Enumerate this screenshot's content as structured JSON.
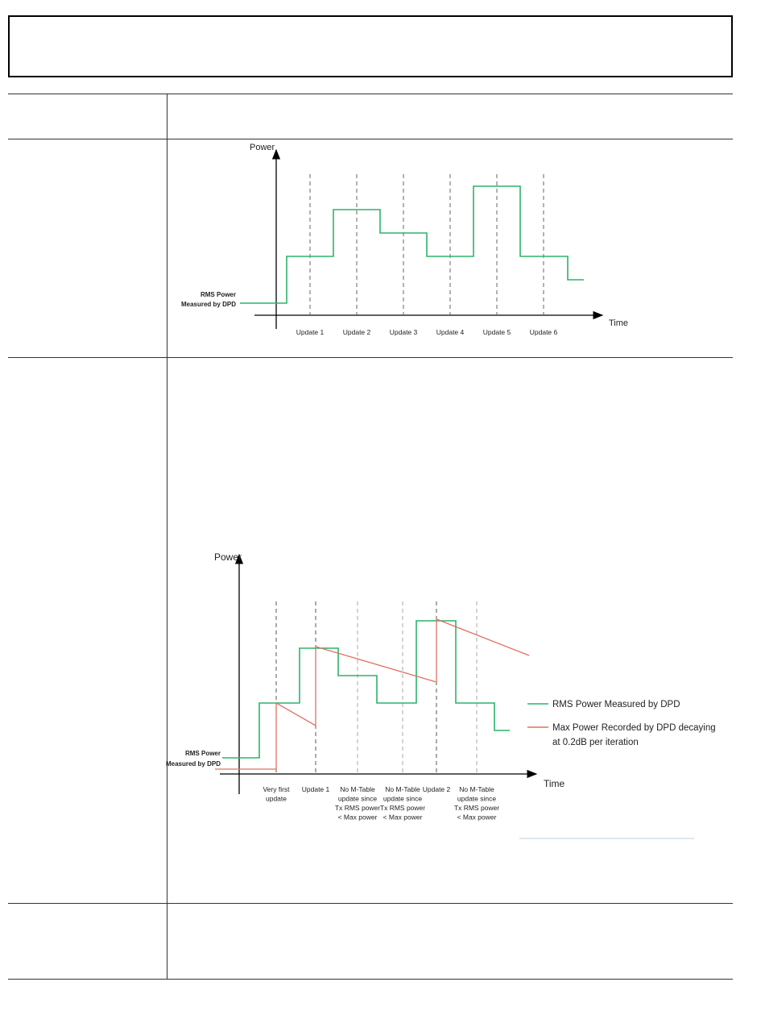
{
  "chart_data": [
    {
      "type": "line",
      "title": "",
      "ylabel": "Power",
      "xlabel": "Time",
      "categories": [
        "Update 1",
        "Update 2",
        "Update 3",
        "Update 4",
        "Update 5",
        "Update 6"
      ],
      "series": [
        {
          "name": "RMS Power Measured by DPD",
          "label": "RMS Power Measured by DPD",
          "label_lines": [
            "RMS Power",
            "Measured by DPD"
          ],
          "color": "#2db36b",
          "steps": [
            1,
            3,
            5,
            4,
            3,
            6,
            3,
            2
          ]
        }
      ]
    },
    {
      "type": "line",
      "title": "",
      "ylabel": "Power",
      "xlabel": "Time",
      "categories": [
        "Very first update",
        "Update 1",
        "No M-Table update since Tx RMS power < Max power",
        "No M-Table update since Tx RMS power < Max power",
        "Update 2",
        "No M-Table update since Tx RMS power < Max power"
      ],
      "category_lines": [
        [
          "Very first",
          "update"
        ],
        [
          "Update 1"
        ],
        [
          "No M-Table",
          "update since",
          "Tx RMS power",
          "< Max power"
        ],
        [
          "No M-Table",
          "update since",
          "Tx RMS power",
          "< Max power"
        ],
        [
          "Update 2"
        ],
        [
          "No M-Table",
          "update since",
          "Tx RMS power",
          "< Max power"
        ]
      ],
      "series": [
        {
          "name": "RMS Power Measured by DPD",
          "label_lines": [
            "RMS Power",
            "Measured by DPD"
          ],
          "color": "#2db36b",
          "steps": [
            1,
            3,
            5,
            4,
            3,
            6,
            3,
            2
          ]
        },
        {
          "name": "Max Power Recorded by DPD decaying at 0.2dB per iteration",
          "color": "#e07060"
        }
      ],
      "legend": [
        {
          "label": "RMS Power Measured by DPD",
          "color": "#2db36b"
        },
        {
          "label_lines": [
            "Max Power Recorded by DPD decaying",
            "at 0.2dB per iteration"
          ],
          "color": "#e07060"
        }
      ]
    }
  ]
}
